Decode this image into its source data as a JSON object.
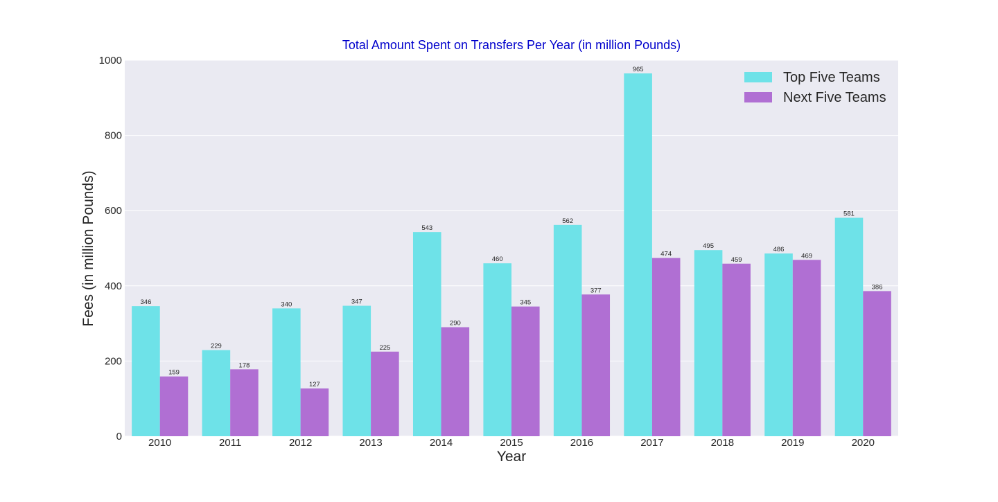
{
  "chart_data": {
    "type": "bar",
    "title": "Total Amount Spent on Transfers Per Year (in million Pounds)",
    "xlabel": "Year",
    "ylabel": "Fees (in million Pounds)",
    "ylim": [
      0,
      1000
    ],
    "yticks": [
      0,
      200,
      400,
      600,
      800,
      1000
    ],
    "grid": true,
    "legend_position": "top-right",
    "categories": [
      "2010",
      "2011",
      "2012",
      "2013",
      "2014",
      "2015",
      "2016",
      "2017",
      "2018",
      "2019",
      "2020"
    ],
    "series": [
      {
        "name": "Top Five Teams",
        "color": "#6EE2E8",
        "values": [
          346,
          229,
          340,
          347,
          543,
          460,
          562,
          965,
          495,
          486,
          581
        ]
      },
      {
        "name": "Next Five Teams",
        "color": "#B06FD3",
        "values": [
          159,
          178,
          127,
          225,
          290,
          345,
          377,
          474,
          459,
          469,
          386
        ]
      }
    ],
    "colors": {
      "title": "#0000CC",
      "plot_background": "#EAEAF2",
      "grid": "#FFFFFF",
      "text": "#262626"
    }
  }
}
